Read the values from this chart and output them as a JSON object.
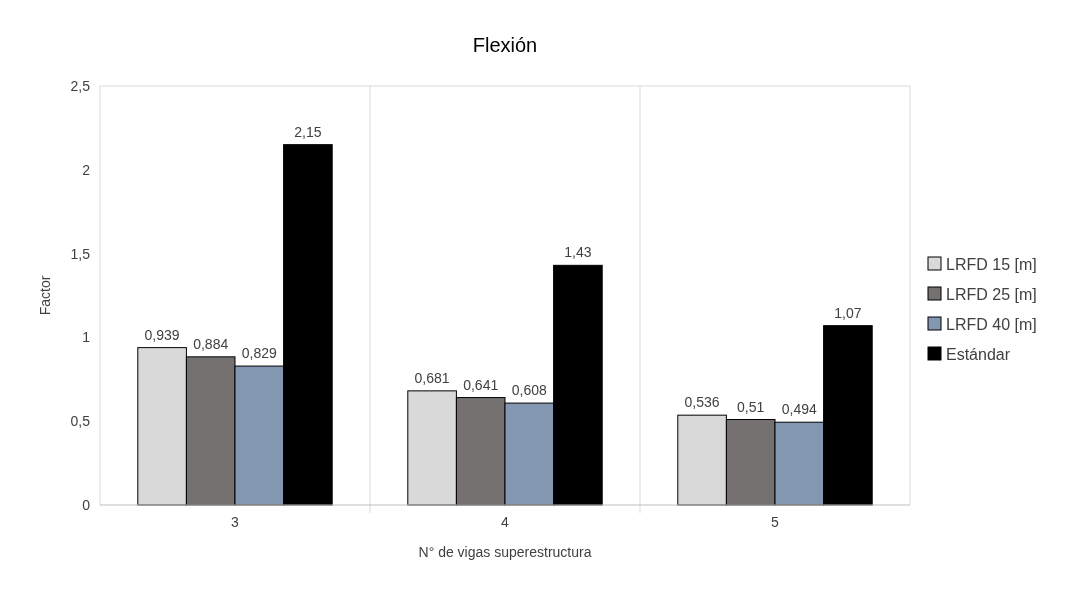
{
  "chart_data": {
    "type": "bar",
    "title": "Flexión",
    "xlabel": "N° de vigas superestructura",
    "ylabel": "Factor",
    "categories": [
      "3",
      "4",
      "5"
    ],
    "series": [
      {
        "name": "LRFD 15 [m]",
        "color": "#d9d9d9",
        "values": [
          0.939,
          0.681,
          0.536
        ],
        "value_labels": [
          "0,939",
          "0,681",
          "0,536"
        ]
      },
      {
        "name": "LRFD 25 [m]",
        "color": "#767171",
        "values": [
          0.884,
          0.641,
          0.51
        ],
        "value_labels": [
          "0,884",
          "0,641",
          "0,51"
        ]
      },
      {
        "name": "LRFD 40 [m]",
        "color": "#8497b0",
        "values": [
          0.829,
          0.608,
          0.494
        ],
        "value_labels": [
          "0,829",
          "0,608",
          "0,494"
        ]
      },
      {
        "name": "Estándar",
        "color": "#000000",
        "values": [
          2.15,
          1.43,
          1.07
        ],
        "value_labels": [
          "2,15",
          "1,43",
          "1,07"
        ]
      }
    ],
    "ylim": [
      0,
      2.5
    ],
    "yticks": [
      0,
      {
        "value": 0.5,
        "label": "0,5"
      },
      1,
      {
        "value": 1.5,
        "label": "1,5"
      },
      2,
      {
        "value": 2.5,
        "label": "2,5"
      }
    ],
    "grid": "x",
    "legend": "right"
  }
}
